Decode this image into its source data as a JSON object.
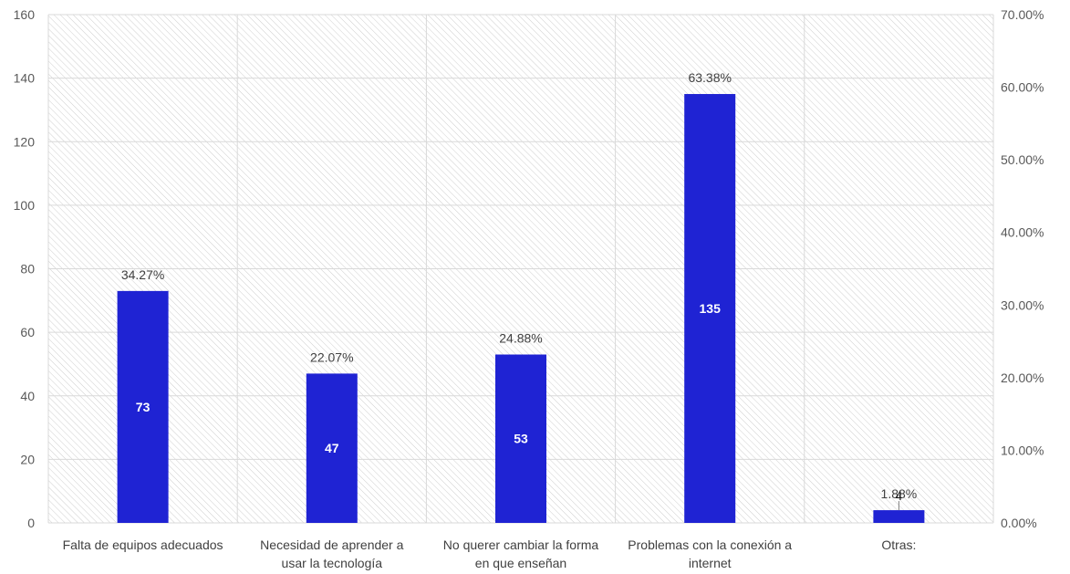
{
  "chart_data": {
    "type": "bar",
    "title": "",
    "xlabel": "",
    "ylabel": "",
    "categories": [
      [
        "Falta de equipos adecuados"
      ],
      [
        "Necesidad de aprender a",
        "usar la tecnología"
      ],
      [
        "No querer cambiar la forma",
        "en que enseñan"
      ],
      [
        "Problemas con la conexión a",
        "internet"
      ],
      [
        "Otras:"
      ]
    ],
    "values": [
      73,
      47,
      53,
      135,
      4
    ],
    "value_labels": [
      "73",
      "47",
      "53",
      "135",
      "4"
    ],
    "percent_labels": [
      "34.27%",
      "22.07%",
      "24.88%",
      "63.38%",
      "1.88%"
    ],
    "ylim": [
      0,
      160
    ],
    "yticks": [
      "0",
      "20",
      "40",
      "60",
      "80",
      "100",
      "120",
      "140",
      "160"
    ],
    "y2lim": [
      0,
      70
    ],
    "y2ticks": [
      "0.00%",
      "10.00%",
      "20.00%",
      "30.00%",
      "40.00%",
      "50.00%",
      "60.00%",
      "70.00%"
    ],
    "grid": true,
    "bar_color": "#1f23d3",
    "grid_color": "#d9d9d9",
    "hatch_color": "#d0d0d0"
  }
}
